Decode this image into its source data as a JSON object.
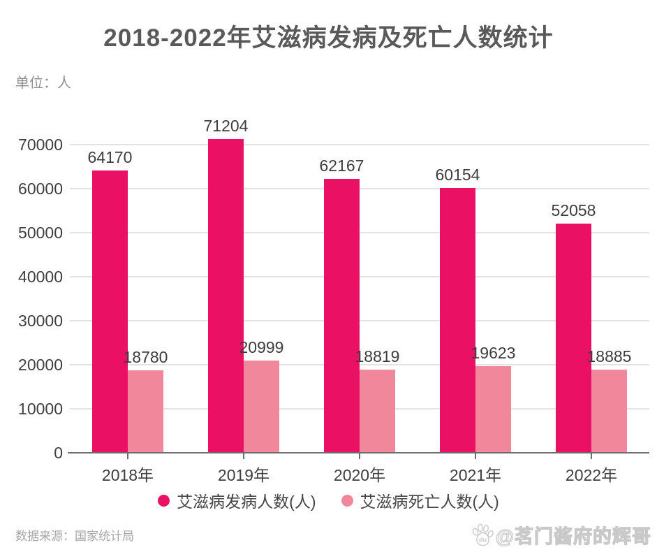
{
  "page": {
    "title": "2018-2022年艾滋病发病及死亡人数统计",
    "unit_label": "单位：人",
    "source": "数据来源：国家统计局",
    "watermark": "@茗门酱府的辉哥",
    "watermark_icon": "baidu-paw-icon",
    "watermark_icon_text": "du"
  },
  "chart_data": {
    "type": "bar",
    "title": "2018-2022年艾滋病发病及死亡人数统计",
    "unit": "人",
    "categories": [
      "2018年",
      "2019年",
      "2020年",
      "2021年",
      "2022年"
    ],
    "series": [
      {
        "name": "艾滋病发病人数(人)",
        "color": "#ea1164",
        "values": [
          64170,
          71204,
          62167,
          60154,
          52058
        ]
      },
      {
        "name": "艾滋病死亡人数(人)",
        "color": "#f1879a",
        "values": [
          18780,
          20999,
          18819,
          19623,
          18885
        ]
      }
    ],
    "ylim": [
      0,
      70000
    ],
    "ytick_step": 10000,
    "yticks": [
      0,
      10000,
      20000,
      30000,
      40000,
      50000,
      60000,
      70000
    ],
    "grid": "horizontal-gridlines-on",
    "legend_position": "bottom",
    "value_labels": true,
    "colors": {
      "title_text": "#595959",
      "axis_text": "#3f3f3f",
      "gridline": "#e3e3e3",
      "axis_line": "#6e6e6e",
      "source_text": "#a6a6a6",
      "watermark_outline": "#c9c9c9"
    }
  }
}
